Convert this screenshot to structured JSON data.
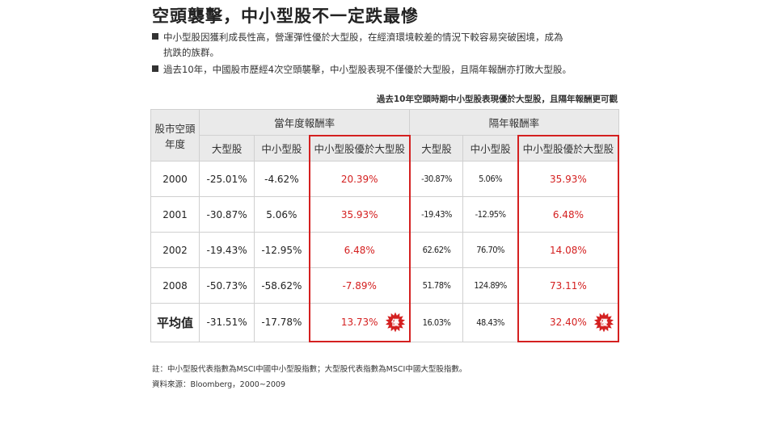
{
  "title": "空頭襲擊，中小型股不一定跌最慘",
  "bullets": [
    {
      "line1": "中小型股因獲利成長性高，營運彈性優於大型股，在經濟環境較差的情況下較容易突破困境，成為",
      "line2": "抗跌的族群。"
    },
    {
      "line1": "過去10年，中國股市歷經4次空頭襲擊，中小型股表現不僅優於大型股，且隔年報酬亦打敗大型股。",
      "line2": ""
    }
  ],
  "caption": "過去10年空頭時期中小型股表現優於大型股，且隔年報酬更可觀",
  "stamp_text": "優",
  "colors": {
    "accent_red": "#d42020",
    "header_bg": "#eaeaea",
    "border": "#d0d0d0"
  },
  "chart_data": {
    "type": "table",
    "header_group": {
      "year_col": [
        "股市空頭",
        "年度"
      ],
      "current": "當年度報酬率",
      "next": "隔年報酬率"
    },
    "sub_headers": [
      "大型股",
      "中小型股",
      "中小型股優於大型股",
      "大型股",
      "中小型股",
      "中小型股優於大型股"
    ],
    "rows": [
      {
        "year": "2000",
        "cur_large": "-25.01%",
        "cur_small": "-4.62%",
        "cur_diff": "20.39%",
        "next_large": "-30.87%",
        "next_small": "5.06%",
        "next_diff": "35.93%"
      },
      {
        "year": "2001",
        "cur_large": "-30.87%",
        "cur_small": "5.06%",
        "cur_diff": "35.93%",
        "next_large": "-19.43%",
        "next_small": "-12.95%",
        "next_diff": "6.48%"
      },
      {
        "year": "2002",
        "cur_large": "-19.43%",
        "cur_small": "-12.95%",
        "cur_diff": "6.48%",
        "next_large": "62.62%",
        "next_small": "76.70%",
        "next_diff": "14.08%"
      },
      {
        "year": "2008",
        "cur_large": "-50.73%",
        "cur_small": "-58.62%",
        "cur_diff": "-7.89%",
        "next_large": "51.78%",
        "next_small": "124.89%",
        "next_diff": "73.11%"
      }
    ],
    "average": {
      "label": "平均值",
      "cur_large": "-31.51%",
      "cur_small": "-17.78%",
      "cur_diff": "13.73%",
      "next_large": "16.03%",
      "next_small": "48.43%",
      "next_diff": "32.40%"
    }
  },
  "notes": [
    "註：中小型股代表指數為MSCI中國中小型股指數；大型股代表指數為MSCI中國大型股指數。",
    "資料來源：Bloomberg，2000~2009"
  ]
}
